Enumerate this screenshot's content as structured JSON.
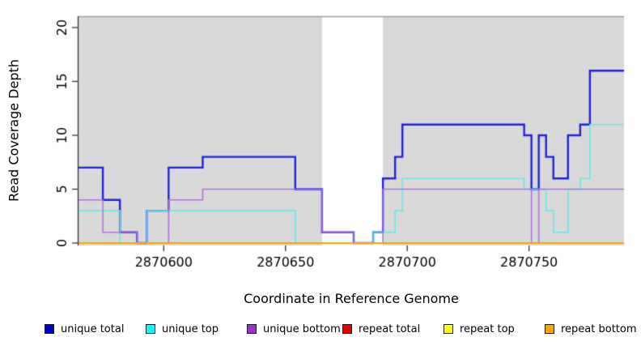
{
  "figure": {
    "background": "#FFFFFF",
    "plot_background": "#D9D9D9",
    "axis_color": "#333333",
    "top_border_color": "#9D9D9D",
    "gap_color": "#FFFFFF"
  },
  "chart_data": {
    "type": "line",
    "style": "step",
    "title": "",
    "xlabel": "Coordinate in Reference Genome",
    "ylabel": "Read Coverage Depth",
    "xlim": [
      2870565,
      2870789
    ],
    "ylim": [
      0,
      21.2
    ],
    "xticks": [
      2870600,
      2870650,
      2870700,
      2870750
    ],
    "yticks": [
      0,
      5,
      10,
      15,
      20
    ],
    "grid": false,
    "legend_position": "bottom",
    "plot_background": "#D9D9D9",
    "uncovered_gap_region": [
      2870665,
      2870690
    ],
    "series": [
      {
        "name": "unique total",
        "color": "#2222E0",
        "width": 2.4,
        "alpha": 1,
        "segments": [
          [
            2870565,
            2870575,
            7
          ],
          [
            2870575,
            2870582,
            4
          ],
          [
            2870582,
            2870589,
            1
          ],
          [
            2870589,
            2870593,
            0
          ],
          [
            2870593,
            2870602,
            3
          ],
          [
            2870602,
            2870616,
            7
          ],
          [
            2870616,
            2870654,
            8
          ],
          [
            2870654,
            2870665,
            5
          ],
          [
            2870665,
            2870678,
            1
          ],
          [
            2870678,
            2870686,
            0
          ],
          [
            2870686,
            2870690,
            1
          ],
          [
            2870690,
            2870695,
            6
          ],
          [
            2870695,
            2870698,
            8
          ],
          [
            2870698,
            2870748,
            11
          ],
          [
            2870748,
            2870751,
            10
          ],
          [
            2870751,
            2870754,
            5
          ],
          [
            2870754,
            2870757,
            10
          ],
          [
            2870757,
            2870760,
            8
          ],
          [
            2870760,
            2870766,
            6
          ],
          [
            2870766,
            2870771,
            10
          ],
          [
            2870771,
            2870775,
            11
          ],
          [
            2870775,
            2870789,
            16
          ]
        ]
      },
      {
        "name": "unique top",
        "color": "#63E9E9",
        "width": 1.6,
        "alpha": 0.95,
        "segments": [
          [
            2870565,
            2870582,
            3
          ],
          [
            2870582,
            2870593,
            0
          ],
          [
            2870593,
            2870654,
            3
          ],
          [
            2870654,
            2870686,
            0
          ],
          [
            2870686,
            2870695,
            1
          ],
          [
            2870695,
            2870698,
            3
          ],
          [
            2870698,
            2870748,
            6
          ],
          [
            2870748,
            2870757,
            5
          ],
          [
            2870757,
            2870760,
            3
          ],
          [
            2870760,
            2870766,
            1
          ],
          [
            2870766,
            2870771,
            5
          ],
          [
            2870771,
            2870775,
            6
          ],
          [
            2870775,
            2870789,
            11
          ]
        ]
      },
      {
        "name": "unique bottom",
        "color": "#B06FE0",
        "width": 1.6,
        "alpha": 0.95,
        "segments": [
          [
            2870565,
            2870575,
            4
          ],
          [
            2870575,
            2870589,
            1
          ],
          [
            2870589,
            2870602,
            0
          ],
          [
            2870602,
            2870616,
            4
          ],
          [
            2870616,
            2870665,
            5
          ],
          [
            2870665,
            2870678,
            1
          ],
          [
            2870678,
            2870690,
            0
          ],
          [
            2870690,
            2870751,
            5
          ],
          [
            2870751,
            2870754,
            0
          ],
          [
            2870754,
            2870789,
            5
          ]
        ]
      },
      {
        "name": "repeat total",
        "color": "#DE0000",
        "width": 1.6,
        "alpha": 1,
        "segments": [
          [
            2870565,
            2870789,
            0
          ]
        ]
      },
      {
        "name": "repeat top",
        "color": "#FFFF00",
        "width": 1.6,
        "alpha": 1,
        "segments": [
          [
            2870565,
            2870789,
            0
          ]
        ]
      },
      {
        "name": "repeat bottom",
        "color": "#FFA500",
        "width": 1.8,
        "alpha": 1,
        "segments": [
          [
            2870565,
            2870789,
            0
          ]
        ]
      }
    ],
    "legend": [
      {
        "label": "unique total",
        "swatch_color": "#0000CD"
      },
      {
        "label": "unique top",
        "swatch_color": "#00FFFF"
      },
      {
        "label": "unique bottom",
        "swatch_color": "#9932CC"
      },
      {
        "label": "repeat total",
        "swatch_color": "#E60000"
      },
      {
        "label": "repeat top",
        "swatch_color": "#FFFF00"
      },
      {
        "label": "repeat bottom",
        "swatch_color": "#FFA500"
      }
    ]
  }
}
